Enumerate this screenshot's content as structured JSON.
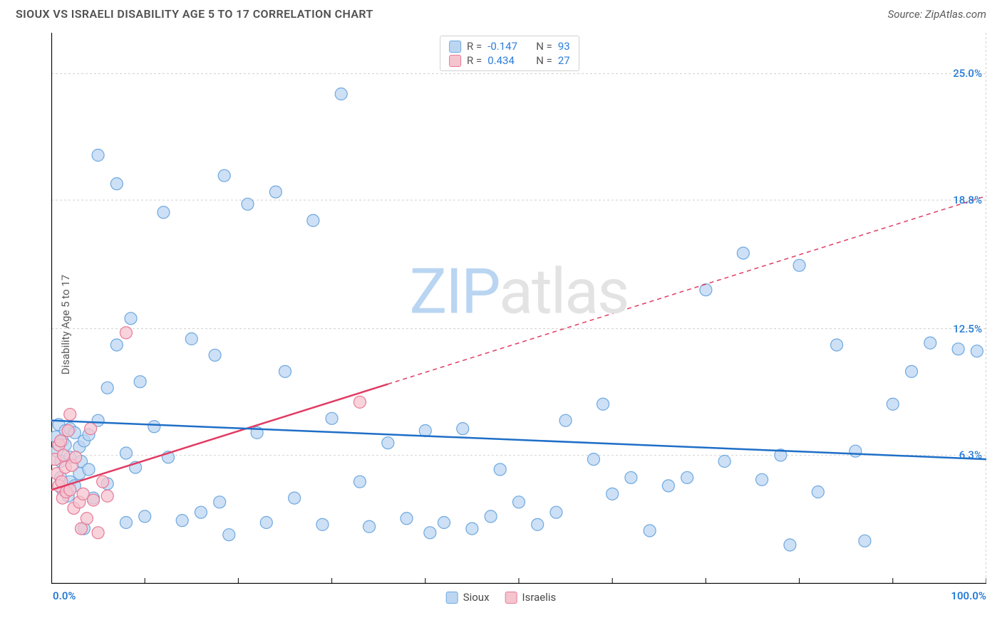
{
  "header": {
    "title": "SIOUX VS ISRAELI DISABILITY AGE 5 TO 17 CORRELATION CHART",
    "source": "Source: ZipAtlas.com"
  },
  "ylabel": "Disability Age 5 to 17",
  "watermark": {
    "part1": "ZIP",
    "part2": "atlas"
  },
  "chart": {
    "type": "scatter",
    "background_color": "#ffffff",
    "grid_color": "#c8c8c8",
    "axis_color": "#000000",
    "xlim": [
      0,
      100
    ],
    "ylim": [
      0,
      27
    ],
    "x_min_label": "0.0%",
    "x_max_label": "100.0%",
    "x_tick_step": 10,
    "y_ticks": [
      {
        "v": 6.3,
        "label": "6.3%",
        "color": "#247ad6"
      },
      {
        "v": 12.5,
        "label": "12.5%",
        "color": "#247ad6"
      },
      {
        "v": 18.8,
        "label": "18.8%",
        "color": "#247ad6"
      },
      {
        "v": 25.0,
        "label": "25.0%",
        "color": "#247ad6"
      }
    ],
    "marker_radius": 8.5,
    "marker_stroke_width": 1.2,
    "trend_line_width": 2.5,
    "series": {
      "sioux": {
        "label": "Sioux",
        "fill": "#bcd6f2",
        "stroke": "#6ea8e0",
        "line_color": "#1f6fc7",
        "R": "-0.147",
        "N": "93",
        "trend": {
          "x1": 0,
          "y1": 8.0,
          "x2": 100,
          "y2": 6.1,
          "dash_from_x": null
        },
        "points": [
          [
            0.5,
            7.2
          ],
          [
            0.6,
            6.5
          ],
          [
            0.8,
            7.8
          ],
          [
            1.0,
            6.0
          ],
          [
            1.0,
            5.2
          ],
          [
            1.2,
            4.6
          ],
          [
            1.2,
            7.0
          ],
          [
            1.5,
            6.8
          ],
          [
            1.5,
            7.5
          ],
          [
            1.8,
            4.3
          ],
          [
            2.0,
            6.2
          ],
          [
            2.0,
            5.0
          ],
          [
            2.0,
            7.6
          ],
          [
            2.5,
            7.4
          ],
          [
            2.5,
            4.8
          ],
          [
            3.0,
            6.7
          ],
          [
            3.0,
            5.4
          ],
          [
            3.2,
            6.0
          ],
          [
            3.5,
            7.0
          ],
          [
            3.5,
            2.7
          ],
          [
            4.0,
            5.6
          ],
          [
            4.0,
            7.3
          ],
          [
            4.5,
            4.2
          ],
          [
            5.0,
            8.0
          ],
          [
            5.0,
            21.0
          ],
          [
            6.0,
            9.6
          ],
          [
            6.0,
            4.9
          ],
          [
            7.0,
            11.7
          ],
          [
            7.0,
            19.6
          ],
          [
            8.0,
            6.4
          ],
          [
            8.0,
            3.0
          ],
          [
            8.5,
            13.0
          ],
          [
            9.0,
            5.7
          ],
          [
            9.5,
            9.9
          ],
          [
            10.0,
            3.3
          ],
          [
            11.0,
            7.7
          ],
          [
            12.0,
            18.2
          ],
          [
            12.5,
            6.2
          ],
          [
            14.0,
            3.1
          ],
          [
            15.0,
            12.0
          ],
          [
            16.0,
            3.5
          ],
          [
            17.5,
            11.2
          ],
          [
            18.0,
            4.0
          ],
          [
            18.5,
            20.0
          ],
          [
            19.0,
            2.4
          ],
          [
            21.0,
            18.6
          ],
          [
            22.0,
            7.4
          ],
          [
            23.0,
            3.0
          ],
          [
            24.0,
            19.2
          ],
          [
            25.0,
            10.4
          ],
          [
            26.0,
            4.2
          ],
          [
            28.0,
            17.8
          ],
          [
            29.0,
            2.9
          ],
          [
            30.0,
            8.1
          ],
          [
            31.0,
            24.0
          ],
          [
            33.0,
            5.0
          ],
          [
            34.0,
            2.8
          ],
          [
            36.0,
            6.9
          ],
          [
            38.0,
            3.2
          ],
          [
            40.0,
            7.5
          ],
          [
            40.5,
            2.5
          ],
          [
            42.0,
            3.0
          ],
          [
            44.0,
            7.6
          ],
          [
            45.0,
            2.7
          ],
          [
            47.0,
            3.3
          ],
          [
            48.0,
            5.6
          ],
          [
            50.0,
            4.0
          ],
          [
            52.0,
            2.9
          ],
          [
            54.0,
            3.5
          ],
          [
            55.0,
            8.0
          ],
          [
            58.0,
            6.1
          ],
          [
            59.0,
            8.8
          ],
          [
            60.0,
            4.4
          ],
          [
            62.0,
            5.2
          ],
          [
            64.0,
            2.6
          ],
          [
            66.0,
            4.8
          ],
          [
            68.0,
            5.2
          ],
          [
            70.0,
            14.4
          ],
          [
            72.0,
            6.0
          ],
          [
            74.0,
            16.2
          ],
          [
            76.0,
            5.1
          ],
          [
            78.0,
            6.3
          ],
          [
            79.0,
            1.9
          ],
          [
            80.0,
            15.6
          ],
          [
            82.0,
            4.5
          ],
          [
            84.0,
            11.7
          ],
          [
            86.0,
            6.5
          ],
          [
            87.0,
            2.1
          ],
          [
            90.0,
            8.8
          ],
          [
            92.0,
            10.4
          ],
          [
            94.0,
            11.8
          ],
          [
            97.0,
            11.5
          ],
          [
            99.0,
            11.4
          ]
        ]
      },
      "israelis": {
        "label": "Israelis",
        "fill": "#f5c4cf",
        "stroke": "#e77a96",
        "line_color": "#e13b63",
        "R": "0.434",
        "N": "27",
        "trend": {
          "x1": 0,
          "y1": 4.6,
          "x2": 100,
          "y2": 19.0,
          "dash_from_x": 36
        },
        "points": [
          [
            0.4,
            6.1
          ],
          [
            0.6,
            5.4
          ],
          [
            0.8,
            4.8
          ],
          [
            0.8,
            6.8
          ],
          [
            1.0,
            7.0
          ],
          [
            1.1,
            5.0
          ],
          [
            1.2,
            4.2
          ],
          [
            1.3,
            6.3
          ],
          [
            1.5,
            5.7
          ],
          [
            1.6,
            4.5
          ],
          [
            1.8,
            7.5
          ],
          [
            2.0,
            8.3
          ],
          [
            2.0,
            4.6
          ],
          [
            2.2,
            5.8
          ],
          [
            2.4,
            3.7
          ],
          [
            2.6,
            6.2
          ],
          [
            3.0,
            4.0
          ],
          [
            3.2,
            2.7
          ],
          [
            3.4,
            4.4
          ],
          [
            3.8,
            3.2
          ],
          [
            4.2,
            7.6
          ],
          [
            4.5,
            4.1
          ],
          [
            5.0,
            2.5
          ],
          [
            5.5,
            5.0
          ],
          [
            6.0,
            4.3
          ],
          [
            8.0,
            12.3
          ],
          [
            33.0,
            8.9
          ]
        ]
      }
    }
  },
  "bottom_legend": [
    {
      "label": "Sioux",
      "fill": "#bcd6f2",
      "stroke": "#6ea8e0"
    },
    {
      "label": "Israelis",
      "fill": "#f5c4cf",
      "stroke": "#e77a96"
    }
  ]
}
